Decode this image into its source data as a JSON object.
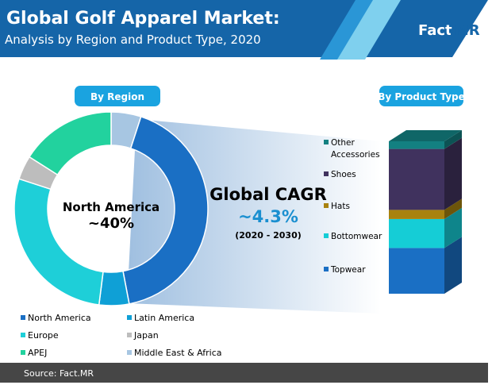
{
  "header": {
    "title": "Global Golf Apparel Market:",
    "subtitle": "Analysis by Region and Product Type, 2020",
    "logo_text": "Fact.MR"
  },
  "colors": {
    "header": "#1565a8",
    "accent": "#1aa3e0",
    "footer": "#464646"
  },
  "cagr": {
    "label": "Global CAGR",
    "value": "~4.3%",
    "period": "(2020 - 2030)"
  },
  "footer": {
    "source": "Source: Fact.MR"
  },
  "chart_data": [
    {
      "type": "pie",
      "variant": "donut",
      "title": "By Region",
      "center_label": "North America",
      "center_value": "~40%",
      "start": "top, clockwise",
      "legend_placement": "bottom",
      "categories": [
        "Middle East & Africa",
        "North America",
        "Latin America",
        "Europe",
        "Japan",
        "APEJ"
      ],
      "values": [
        5,
        42,
        5,
        28,
        4,
        16
      ],
      "colors": [
        "#a7c6e2",
        "#1a6fc4",
        "#0fa0d6",
        "#1ecfd8",
        "#bdbdbd",
        "#22d29e"
      ],
      "legend": [
        {
          "name": "North America",
          "color": "#1a6fc4"
        },
        {
          "name": "Latin America",
          "color": "#0fa0d6"
        },
        {
          "name": "Europe",
          "color": "#1ecfd8"
        },
        {
          "name": "Japan",
          "color": "#bdbdbd"
        },
        {
          "name": "APEJ",
          "color": "#22d29e"
        },
        {
          "name": "Middle East & Africa",
          "color": "#a7c6e2"
        }
      ]
    },
    {
      "type": "bar",
      "variant": "stacked-3d",
      "title": "By Product Type",
      "legend_placement": "left",
      "categories": [
        "Topwear",
        "Bottomwear",
        "Hats",
        "Shoes",
        "Other Accessories"
      ],
      "values": [
        30,
        19,
        6,
        40,
        5
      ],
      "colors": [
        "#1a6fc4",
        "#15cdd6",
        "#a8820f",
        "#40325e",
        "#138081"
      ]
    }
  ]
}
